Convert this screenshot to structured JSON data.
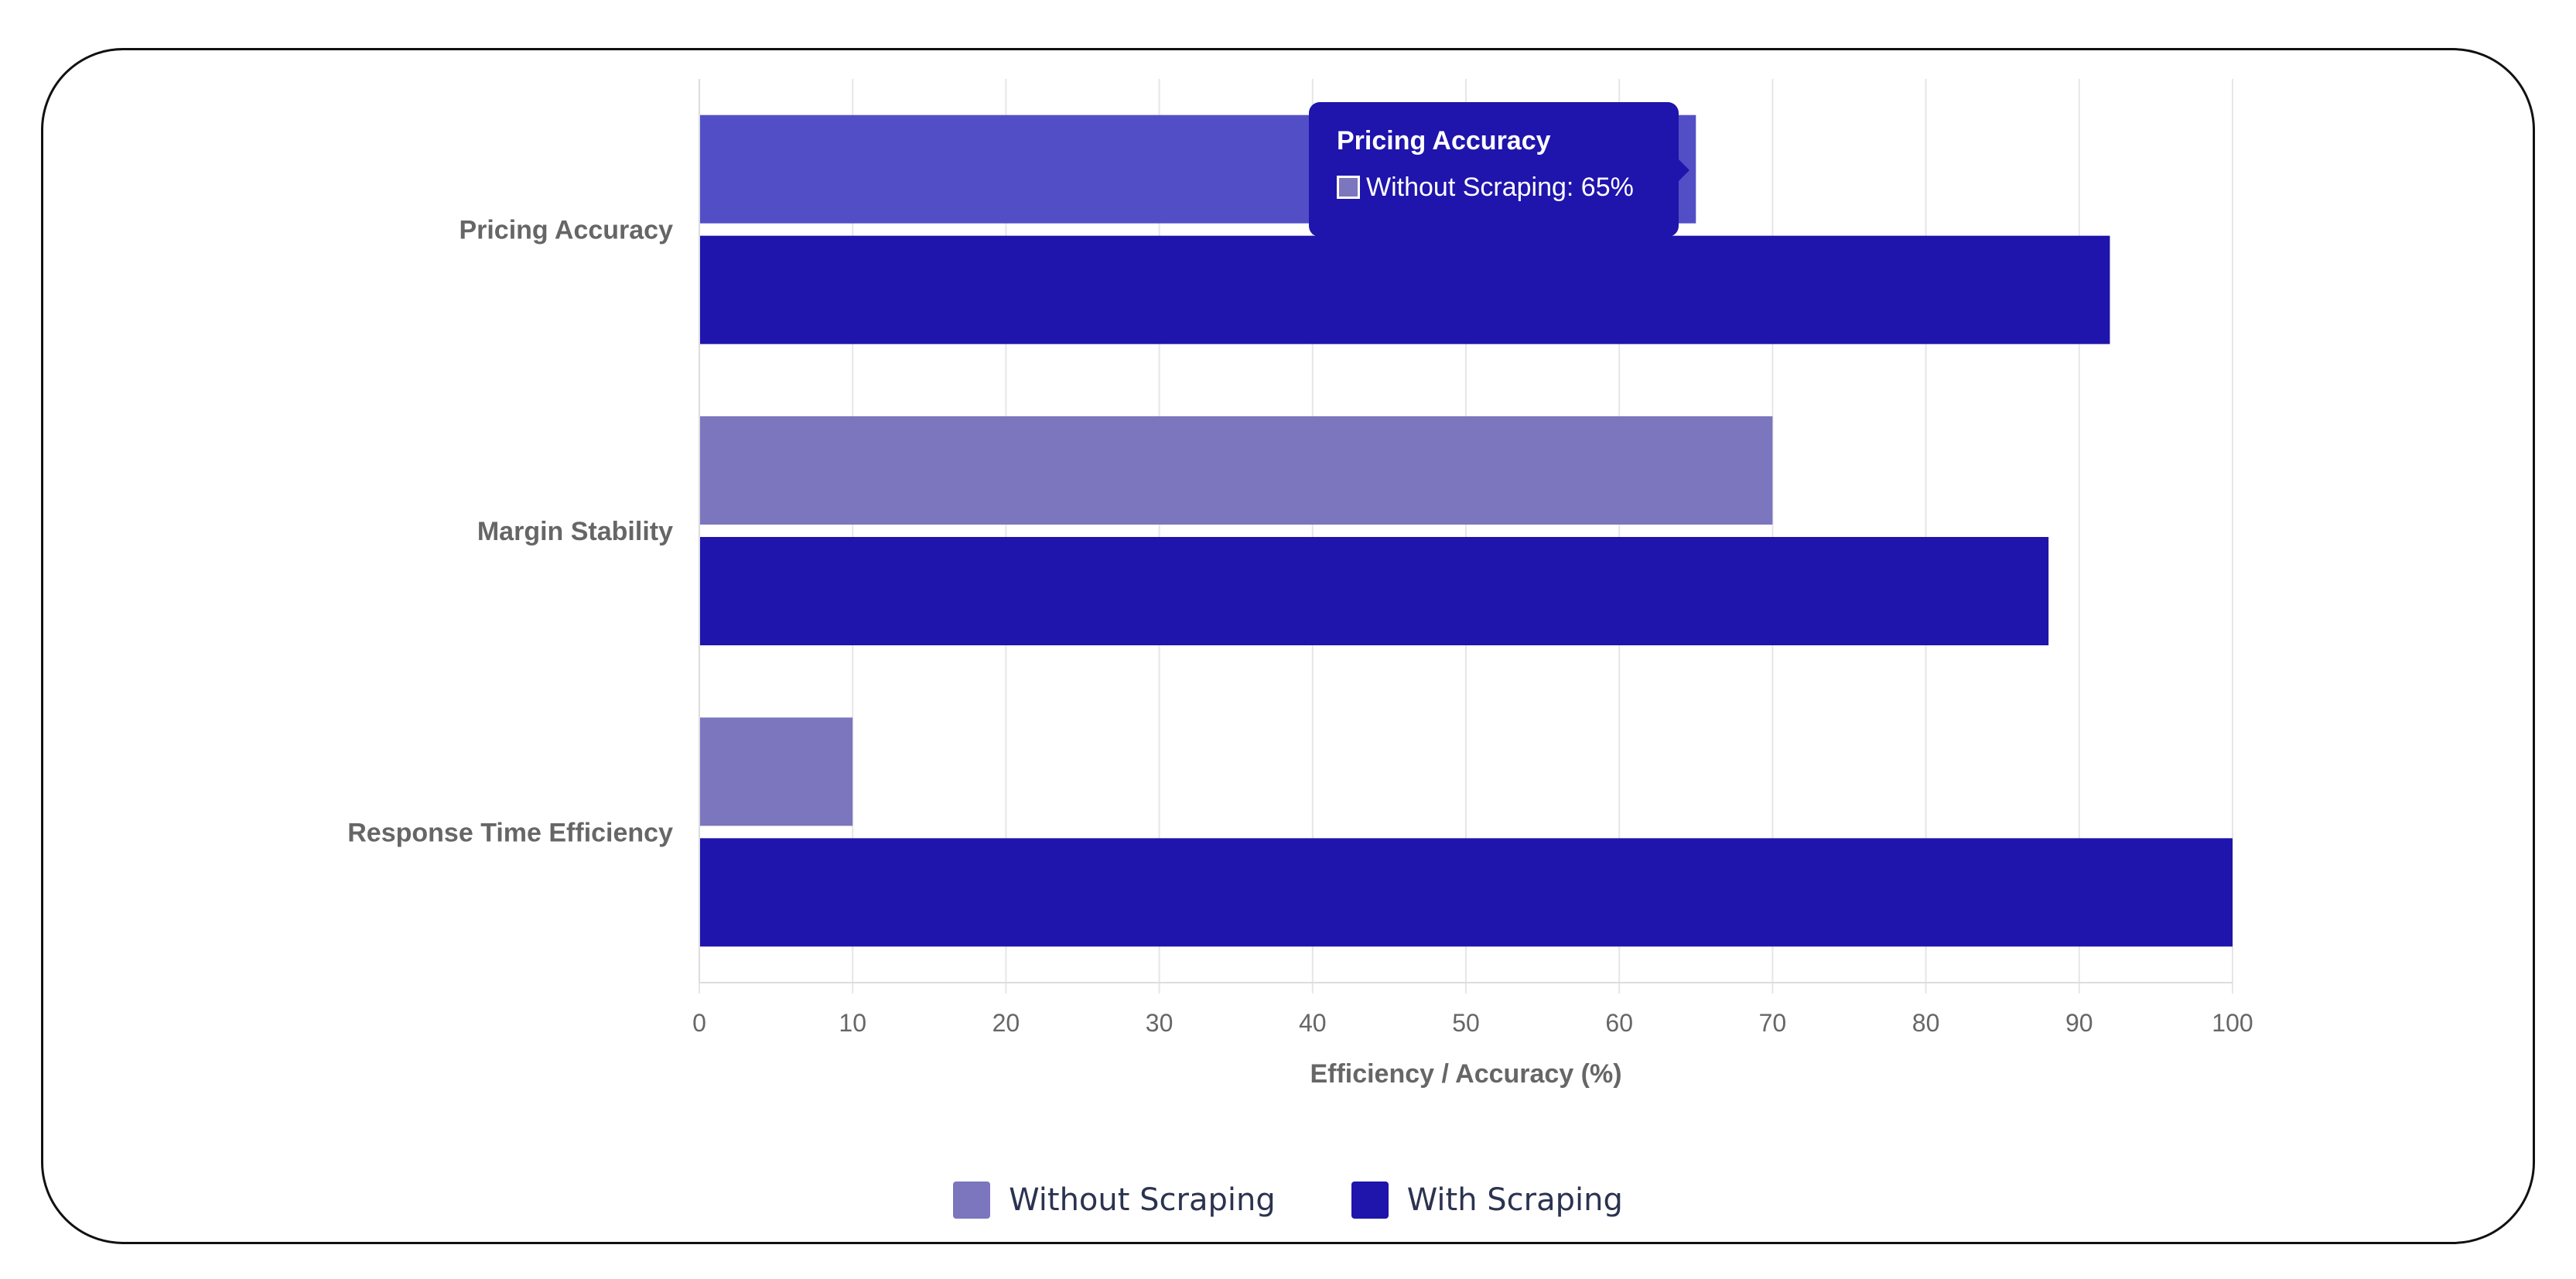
{
  "chart_data": {
    "type": "bar",
    "orientation": "horizontal",
    "categories": [
      "Pricing Accuracy",
      "Margin Stability",
      "Response Time Efficiency"
    ],
    "series": [
      {
        "name": "Without Scraping",
        "values": [
          65,
          70,
          10
        ]
      },
      {
        "name": "With Scraping",
        "values": [
          92,
          88,
          100
        ]
      }
    ],
    "xlabel": "Efficiency / Accuracy (%)",
    "ylabel": "",
    "xlim": [
      0,
      100
    ],
    "x_ticks": [
      "0",
      "10",
      "20",
      "30",
      "40",
      "50",
      "60",
      "70",
      "80",
      "90",
      "100"
    ],
    "grid": true,
    "legend_position": "bottom",
    "colors": {
      "without_scraping": "#7b76bd",
      "without_scraping_hovered": "#524fc6",
      "with_scraping": "#1f14ab",
      "gridline": "#e6e6e6"
    },
    "hovered": {
      "series": 0,
      "category": 0
    }
  },
  "tooltip": {
    "title": "Pricing Accuracy",
    "text": "Without Scraping: 65%"
  },
  "legend": {
    "items": [
      {
        "label": "Without Scraping",
        "color": "#7b76bd"
      },
      {
        "label": "With Scraping",
        "color": "#1f14ab"
      }
    ]
  }
}
